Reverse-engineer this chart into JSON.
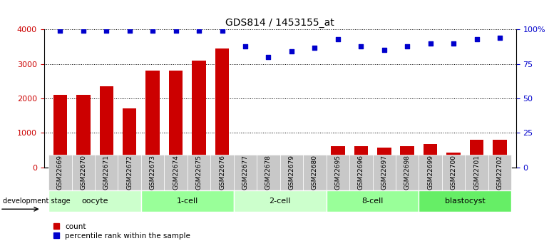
{
  "title": "GDS814 / 1453155_at",
  "samples": [
    "GSM22669",
    "GSM22670",
    "GSM22671",
    "GSM22672",
    "GSM22673",
    "GSM22674",
    "GSM22675",
    "GSM22676",
    "GSM22677",
    "GSM22678",
    "GSM22679",
    "GSM22680",
    "GSM22695",
    "GSM22696",
    "GSM22697",
    "GSM22698",
    "GSM22699",
    "GSM22700",
    "GSM22701",
    "GSM22702"
  ],
  "counts": [
    2100,
    2100,
    2350,
    1700,
    2800,
    2800,
    3100,
    3450,
    350,
    200,
    250,
    320,
    620,
    620,
    580,
    620,
    680,
    420,
    800,
    800
  ],
  "percentiles": [
    99,
    99,
    99,
    99,
    99,
    99,
    99,
    99,
    88,
    80,
    84,
    87,
    93,
    88,
    85,
    88,
    90,
    90,
    93,
    94
  ],
  "stages": [
    {
      "label": "oocyte",
      "start": 0,
      "end": 3,
      "color": "#ccffcc"
    },
    {
      "label": "1-cell",
      "start": 4,
      "end": 7,
      "color": "#99ff99"
    },
    {
      "label": "2-cell",
      "start": 8,
      "end": 11,
      "color": "#ccffcc"
    },
    {
      "label": "8-cell",
      "start": 12,
      "end": 15,
      "color": "#99ff99"
    },
    {
      "label": "blastocyst",
      "start": 16,
      "end": 19,
      "color": "#66ee66"
    }
  ],
  "bar_color": "#cc0000",
  "dot_color": "#0000cc",
  "left_ylim": [
    0,
    4000
  ],
  "left_yticks": [
    0,
    1000,
    2000,
    3000,
    4000
  ],
  "right_ylim": [
    0,
    100
  ],
  "right_yticks": [
    0,
    25,
    50,
    75,
    100
  ],
  "right_yticklabels": [
    "0",
    "25",
    "50",
    "75",
    "100%"
  ],
  "bg_color": "#ffffff",
  "tick_label_color_left": "#cc0000",
  "tick_label_color_right": "#0000cc",
  "development_stage_label": "development stage",
  "legend_count_label": "count",
  "legend_pct_label": "percentile rank within the sample",
  "xtick_bg": "#c8c8c8"
}
